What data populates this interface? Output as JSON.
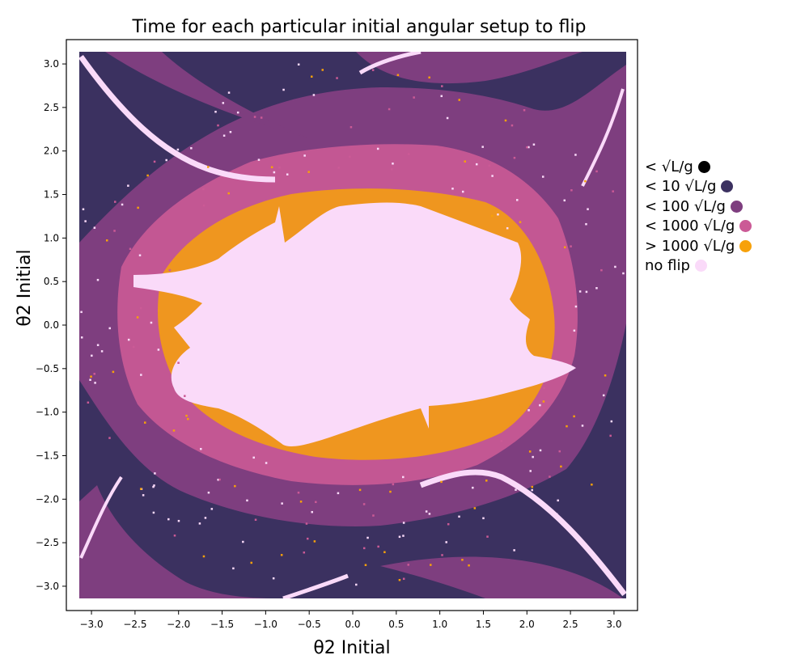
{
  "chart_data": {
    "type": "heatmap",
    "title": "Time for each particular initial angular setup to flip",
    "xlabel": "θ2 Initial",
    "ylabel": "θ2 Initial",
    "xlim": [
      -3.14,
      3.14
    ],
    "ylim": [
      -3.14,
      3.14
    ],
    "xticks": [
      "−3.0",
      "−2.5",
      "−2.0",
      "−1.5",
      "−1.0",
      "−0.5",
      "0.0",
      "0.5",
      "1.0",
      "1.5",
      "2.0",
      "2.5",
      "3.0"
    ],
    "yticks": [
      "3.0",
      "2.5",
      "2.0",
      "1.5",
      "1.0",
      "0.5",
      "0.0",
      "−0.5",
      "−1.0",
      "−1.5",
      "−2.0",
      "−2.5",
      "−3.0"
    ],
    "grid": false,
    "legend_placement": "right",
    "categories": [
      {
        "label": "< √L/g",
        "color": "#000000"
      },
      {
        "label": "< 10 √L/g",
        "color": "#3b3160"
      },
      {
        "label": "< 100 √L/g",
        "color": "#7e3e7f"
      },
      {
        "label": "< 1000 √L/g",
        "color": "#cb5a96"
      },
      {
        "label": "> 1000 √L/g",
        "color": "#f7a10a"
      },
      {
        "label": "no flip",
        "color": "#fadaf9"
      }
    ]
  }
}
